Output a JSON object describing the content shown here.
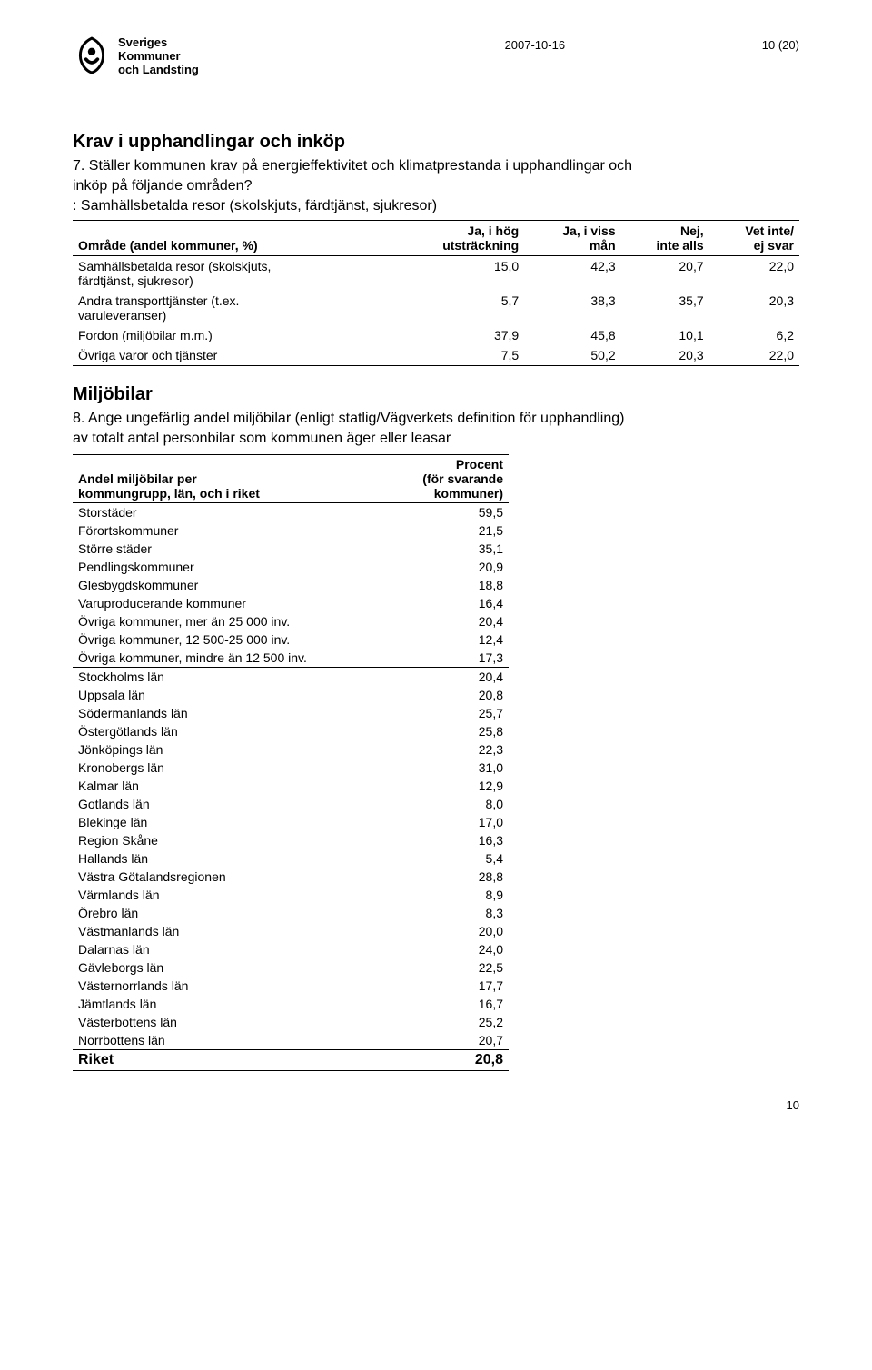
{
  "header": {
    "org_line1": "Sveriges",
    "org_line2": "Kommuner",
    "org_line3": "och Landsting",
    "date": "2007-10-16",
    "page_label": "10 (20)"
  },
  "section1": {
    "title": "Krav i upphandlingar och inköp",
    "q_line1": "7. Ställer kommunen krav på energieffektivitet och klimatprestanda i upphandlingar och",
    "q_line2": "inköp på följande områden?",
    "sub": ": Samhällsbetalda resor (skolskjuts, färdtjänst, sjukresor)",
    "table": {
      "head_col0": "Område (andel kommuner, %)",
      "head_col1a": "Ja, i hög",
      "head_col1b": "utsträckning",
      "head_col2a": "Ja, i viss",
      "head_col2b": "mån",
      "head_col3a": "Nej,",
      "head_col3b": "inte alls",
      "head_col4a": "Vet inte/",
      "head_col4b": "ej svar",
      "rows": [
        {
          "label_a": "Samhällsbetalda resor (skolskjuts,",
          "label_b": "färdtjänst, sjukresor)",
          "c1": "15,0",
          "c2": "42,3",
          "c3": "20,7",
          "c4": "22,0"
        },
        {
          "label_a": "Andra transporttjänster (t.ex.",
          "label_b": "varuleveranser)",
          "c1": "5,7",
          "c2": "38,3",
          "c3": "35,7",
          "c4": "20,3"
        },
        {
          "label_a": "Fordon (miljöbilar m.m.)",
          "label_b": "",
          "c1": "37,9",
          "c2": "45,8",
          "c3": "10,1",
          "c4": "6,2"
        },
        {
          "label_a": "Övriga varor och tjänster",
          "label_b": "",
          "c1": "7,5",
          "c2": "50,2",
          "c3": "20,3",
          "c4": "22,0"
        }
      ]
    }
  },
  "section2": {
    "title": "Miljöbilar",
    "q_line1": "8. Ange ungefärlig andel miljöbilar (enligt statlig/Vägverkets definition för upphandling)",
    "q_line2": "av totalt antal personbilar som kommunen äger eller leasar",
    "table": {
      "head_col0a": "Andel miljöbilar per",
      "head_col0b": "kommungrupp, län, och i riket",
      "head_col1a": "Procent",
      "head_col1b": "(för svarande kommuner)",
      "groups": [
        {
          "rows": [
            {
              "label": "Storstäder",
              "val": "59,5"
            },
            {
              "label": "Förortskommuner",
              "val": "21,5"
            },
            {
              "label": "Större städer",
              "val": "35,1"
            },
            {
              "label": "Pendlingskommuner",
              "val": "20,9"
            },
            {
              "label": "Glesbygdskommuner",
              "val": "18,8"
            },
            {
              "label": "Varuproducerande kommuner",
              "val": "16,4"
            },
            {
              "label": "Övriga kommuner, mer än 25 000 inv.",
              "val": "20,4"
            },
            {
              "label": "Övriga kommuner, 12 500-25 000 inv.",
              "val": "12,4"
            },
            {
              "label": "Övriga kommuner, mindre än 12 500 inv.",
              "val": "17,3"
            }
          ]
        },
        {
          "rows": [
            {
              "label": "Stockholms län",
              "val": "20,4"
            },
            {
              "label": "Uppsala län",
              "val": "20,8"
            },
            {
              "label": "Södermanlands län",
              "val": "25,7"
            },
            {
              "label": "Östergötlands län",
              "val": "25,8"
            },
            {
              "label": "Jönköpings län",
              "val": "22,3"
            },
            {
              "label": "Kronobergs län",
              "val": "31,0"
            },
            {
              "label": "Kalmar län",
              "val": "12,9"
            },
            {
              "label": "Gotlands län",
              "val": "8,0"
            },
            {
              "label": "Blekinge län",
              "val": "17,0"
            },
            {
              "label": "Region Skåne",
              "val": "16,3"
            },
            {
              "label": "Hallands län",
              "val": "5,4"
            },
            {
              "label": "Västra Götalandsregionen",
              "val": "28,8"
            },
            {
              "label": "Värmlands län",
              "val": "8,9"
            },
            {
              "label": "Örebro län",
              "val": "8,3"
            },
            {
              "label": "Västmanlands län",
              "val": "20,0"
            },
            {
              "label": "Dalarnas län",
              "val": "24,0"
            },
            {
              "label": "Gävleborgs län",
              "val": "22,5"
            },
            {
              "label": "Västernorrlands län",
              "val": "17,7"
            },
            {
              "label": "Jämtlands län",
              "val": "16,7"
            },
            {
              "label": "Västerbottens län",
              "val": "25,2"
            },
            {
              "label": "Norrbottens län",
              "val": "20,7"
            }
          ]
        }
      ],
      "total": {
        "label": "Riket",
        "val": "20,8"
      }
    }
  },
  "footer_page": "10"
}
